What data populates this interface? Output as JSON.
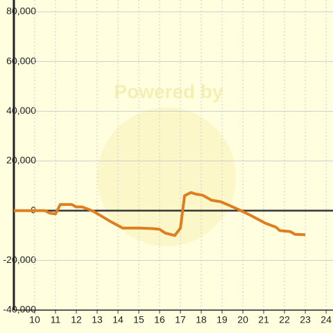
{
  "chart_data": {
    "type": "line",
    "watermark": "Powered by",
    "x": [
      9.0,
      10.5,
      10.73,
      11.0,
      11.23,
      11.77,
      12.0,
      12.27,
      12.5,
      12.83,
      13.17,
      13.67,
      14.0,
      14.23,
      15.0,
      15.67,
      16.0,
      16.27,
      16.5,
      16.73,
      17.0,
      17.2,
      17.5,
      17.73,
      18.07,
      18.5,
      18.93,
      19.33,
      19.83,
      20.33,
      21.07,
      21.6,
      21.77,
      22.27,
      22.5,
      23.0
    ],
    "series": [
      {
        "color": "#df7d1f",
        "values": [
          0,
          0,
          -1000,
          -1300,
          2500,
          2500,
          1500,
          1500,
          800,
          -300,
          -2000,
          -4500,
          -6000,
          -7000,
          -7000,
          -7200,
          -7500,
          -9000,
          -9500,
          -10000,
          -7000,
          6000,
          7300,
          6700,
          6200,
          4200,
          3600,
          2200,
          300,
          -1700,
          -5000,
          -6700,
          -8000,
          -8400,
          -9500,
          -9700
        ]
      }
    ],
    "xlim": [
      9.0,
      24.33
    ],
    "xticks": [
      10,
      11,
      12,
      13,
      14,
      15,
      16,
      17,
      18,
      19,
      20,
      21,
      22,
      23,
      24
    ],
    "ylim": [
      -40000,
      80000
    ],
    "yticks": [
      {
        "value": -40000,
        "label": "-40,000"
      },
      {
        "value": -20000,
        "label": "-20,000"
      },
      0,
      {
        "value": 20000,
        "label": "20,000"
      },
      {
        "value": 40000,
        "label": "40,000"
      },
      {
        "value": 60000,
        "label": "60,000"
      },
      {
        "value": 80000,
        "label": "80,000"
      }
    ],
    "grid": true
  }
}
